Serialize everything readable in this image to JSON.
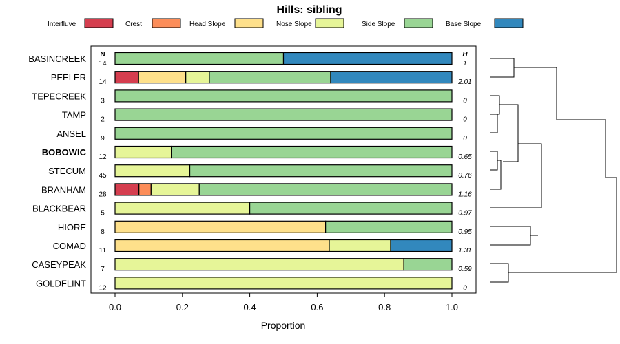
{
  "chart_data": {
    "type": "bar",
    "stacked": true,
    "orientation": "horizontal",
    "title": "Hills: sibling",
    "xlabel": "Proportion",
    "xlim": [
      0,
      1
    ],
    "x_ticks": [
      "0.0",
      "0.2",
      "0.4",
      "0.6",
      "0.8",
      "1.0"
    ],
    "n_header": "N",
    "h_header": "H",
    "highlight": "BOBOWIC",
    "series": [
      {
        "name": "Interfluve",
        "color": "#d53e4f"
      },
      {
        "name": "Crest",
        "color": "#fc8d59"
      },
      {
        "name": "Head Slope",
        "color": "#fee08b"
      },
      {
        "name": "Nose Slope",
        "color": "#e6f598"
      },
      {
        "name": "Side Slope",
        "color": "#99d594"
      },
      {
        "name": "Base Slope",
        "color": "#3288bd"
      }
    ],
    "categories": [
      "BASINCREEK",
      "PEELER",
      "TEPECREEK",
      "TAMP",
      "ANSEL",
      "BOBOWIC",
      "STECUM",
      "BRANHAM",
      "BLACKBEAR",
      "HIORE",
      "COMAD",
      "CASEYPEAK",
      "GOLDFLINT"
    ],
    "n": [
      "14",
      "14",
      "3",
      "2",
      "9",
      "12",
      "45",
      "28",
      "5",
      "8",
      "11",
      "7",
      "12"
    ],
    "h": [
      "1",
      "2.01",
      "0",
      "0",
      "0",
      "0.65",
      "0.76",
      "1.16",
      "0.97",
      "0.95",
      "1.31",
      "0.59",
      "0"
    ],
    "values": [
      [
        0,
        0,
        0,
        0,
        0.5,
        0.5
      ],
      [
        0.07,
        0,
        0.14,
        0.07,
        0.36,
        0.36
      ],
      [
        0,
        0,
        0,
        0,
        1.0,
        0
      ],
      [
        0,
        0,
        0,
        0,
        1.0,
        0
      ],
      [
        0,
        0,
        0,
        0,
        1.0,
        0
      ],
      [
        0,
        0,
        0,
        0.167,
        0.833,
        0
      ],
      [
        0,
        0,
        0,
        0.222,
        0.778,
        0
      ],
      [
        0.071,
        0.036,
        0,
        0.143,
        0.75,
        0
      ],
      [
        0,
        0,
        0,
        0.4,
        0.6,
        0
      ],
      [
        0,
        0,
        0.625,
        0,
        0.375,
        0
      ],
      [
        0,
        0,
        0.636,
        0.182,
        0,
        0.182
      ],
      [
        0,
        0,
        0,
        0.857,
        0.143,
        0
      ],
      [
        0,
        0,
        0,
        1.0,
        0,
        0
      ]
    ]
  }
}
